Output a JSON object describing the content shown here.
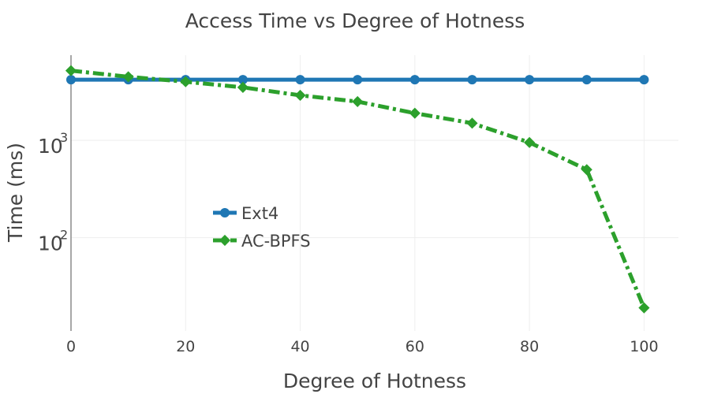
{
  "chart_data": {
    "type": "line",
    "title": "Access Time vs Degree of Hotness",
    "xlabel": "Degree of Hotness",
    "ylabel": "Time (ms)",
    "xlim": [
      0,
      106
    ],
    "ylim": [
      11,
      7500
    ],
    "yscale": "log",
    "grid": true,
    "legend_position": "center-left",
    "x_ticks": [
      0,
      20,
      40,
      60,
      80,
      100
    ],
    "y_ticks": [
      {
        "value": 100,
        "base": "10",
        "exp": "2"
      },
      {
        "value": 1000,
        "base": "10",
        "exp": "3"
      }
    ],
    "x": [
      0,
      10,
      20,
      30,
      40,
      50,
      60,
      70,
      80,
      90,
      100
    ],
    "series": [
      {
        "name": "Ext4",
        "color": "#1f77b4",
        "marker": "circle",
        "dash": "solid",
        "values": [
          4200,
          4200,
          4200,
          4200,
          4200,
          4200,
          4200,
          4200,
          4200,
          4200,
          4200
        ]
      },
      {
        "name": "AC-BPFS",
        "color": "#2ca02c",
        "marker": "diamond",
        "dash": "dashdot",
        "values": [
          5200,
          4500,
          4000,
          3500,
          2900,
          2500,
          1900,
          1500,
          950,
          500,
          19
        ]
      }
    ]
  }
}
